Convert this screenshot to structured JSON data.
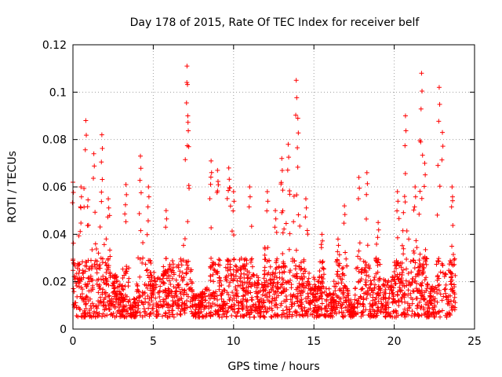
{
  "chart_data": {
    "type": "scatter",
    "title": "Day 178 of 2015, Rate Of TEC Index for receiver belf",
    "xlabel": "GPS time / hours",
    "ylabel": "ROTI / TECUs",
    "xlim": [
      0,
      25
    ],
    "ylim": [
      0,
      0.12
    ],
    "x_ticks": [
      0,
      5,
      10,
      15,
      20,
      25
    ],
    "x_tick_labels": [
      "0",
      "5",
      "10",
      "15",
      "20",
      "25"
    ],
    "y_ticks": [
      0,
      0.02,
      0.04,
      0.06,
      0.08,
      0.1,
      0.12
    ],
    "y_tick_labels": [
      "0",
      "0.02",
      "0.04",
      "0.06",
      "0.08",
      "0.1",
      "0.12"
    ],
    "grid": true,
    "marker": "+",
    "marker_color": "#ff0000",
    "data_range_hours": [
      0,
      23.8
    ],
    "typical_band": [
      0.005,
      0.03
    ],
    "series": [
      {
        "name": "ROTI",
        "peaks": [
          {
            "x": 0.0,
            "y": 0.062
          },
          {
            "x": 0.5,
            "y": 0.06
          },
          {
            "x": 0.8,
            "y": 0.088
          },
          {
            "x": 1.3,
            "y": 0.074
          },
          {
            "x": 1.8,
            "y": 0.082
          },
          {
            "x": 2.2,
            "y": 0.055
          },
          {
            "x": 3.3,
            "y": 0.061
          },
          {
            "x": 4.2,
            "y": 0.073
          },
          {
            "x": 4.7,
            "y": 0.06
          },
          {
            "x": 5.8,
            "y": 0.05
          },
          {
            "x": 7.1,
            "y": 0.111
          },
          {
            "x": 7.15,
            "y": 0.09
          },
          {
            "x": 8.6,
            "y": 0.071
          },
          {
            "x": 9.0,
            "y": 0.067
          },
          {
            "x": 9.7,
            "y": 0.068
          },
          {
            "x": 10.0,
            "y": 0.058
          },
          {
            "x": 11.0,
            "y": 0.06
          },
          {
            "x": 12.1,
            "y": 0.058
          },
          {
            "x": 12.6,
            "y": 0.05
          },
          {
            "x": 13.0,
            "y": 0.072
          },
          {
            "x": 13.4,
            "y": 0.078
          },
          {
            "x": 13.9,
            "y": 0.105
          },
          {
            "x": 14.0,
            "y": 0.089
          },
          {
            "x": 14.5,
            "y": 0.055
          },
          {
            "x": 15.5,
            "y": 0.04
          },
          {
            "x": 16.5,
            "y": 0.038
          },
          {
            "x": 16.9,
            "y": 0.052
          },
          {
            "x": 17.8,
            "y": 0.064
          },
          {
            "x": 18.3,
            "y": 0.066
          },
          {
            "x": 19.0,
            "y": 0.045
          },
          {
            "x": 20.2,
            "y": 0.058
          },
          {
            "x": 20.7,
            "y": 0.09
          },
          {
            "x": 21.3,
            "y": 0.06
          },
          {
            "x": 21.7,
            "y": 0.108
          },
          {
            "x": 21.9,
            "y": 0.07
          },
          {
            "x": 22.8,
            "y": 0.102
          },
          {
            "x": 23.0,
            "y": 0.083
          },
          {
            "x": 23.6,
            "y": 0.06
          }
        ]
      }
    ]
  }
}
